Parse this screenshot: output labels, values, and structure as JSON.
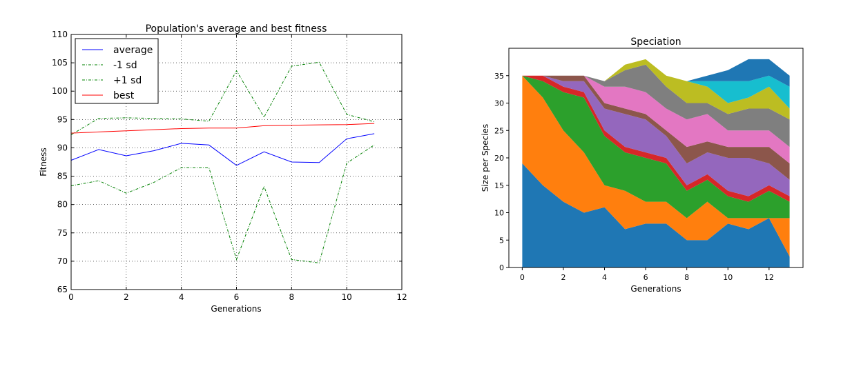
{
  "chart_data": [
    {
      "type": "line",
      "title": "Population's average and best fitness",
      "xlabel": "Generations",
      "ylabel": "Fitness",
      "xlim": [
        0,
        12
      ],
      "ylim": [
        65,
        110
      ],
      "xticks": [
        "0",
        "2",
        "4",
        "6",
        "8",
        "10",
        "12"
      ],
      "yticks": [
        "65",
        "70",
        "75",
        "80",
        "85",
        "90",
        "95",
        "100",
        "105",
        "110"
      ],
      "grid": true,
      "legend": "top-left",
      "x": [
        0,
        1,
        2,
        3,
        4,
        5,
        6,
        7,
        8,
        9,
        10,
        11
      ],
      "series": [
        {
          "name": "average",
          "color": "#0000ff",
          "style": "solid",
          "values": [
            87.8,
            89.7,
            88.6,
            89.5,
            90.8,
            90.5,
            86.9,
            89.3,
            87.5,
            87.4,
            91.6,
            92.5
          ]
        },
        {
          "name": "-1 sd",
          "color": "#008000",
          "style": "dashdot",
          "values": [
            83.3,
            84.2,
            82.0,
            83.9,
            86.5,
            86.5,
            70.3,
            83.2,
            70.3,
            69.7,
            87.3,
            90.5
          ]
        },
        {
          "name": "+1 sd",
          "color": "#008000",
          "style": "dashdot",
          "values": [
            92.3,
            95.2,
            95.3,
            95.2,
            95.1,
            94.7,
            103.6,
            95.4,
            104.4,
            105.1,
            95.9,
            94.6
          ]
        },
        {
          "name": "best",
          "color": "#ff0000",
          "style": "solid",
          "values": [
            92.6,
            92.8,
            93.0,
            93.2,
            93.4,
            93.5,
            93.5,
            93.9,
            94.0,
            94.05,
            94.1,
            94.3
          ]
        }
      ]
    },
    {
      "type": "area",
      "stacked": true,
      "title": "Speciation",
      "xlabel": "Generations",
      "ylabel": "Size per Species",
      "xlim": [
        -0.65,
        13.65
      ],
      "ylim": [
        0,
        40
      ],
      "xticks": [
        "0",
        "2",
        "4",
        "6",
        "8",
        "10",
        "12"
      ],
      "yticks": [
        "0",
        "5",
        "10",
        "15",
        "20",
        "25",
        "30",
        "35"
      ],
      "grid": false,
      "x": [
        0,
        1,
        2,
        3,
        4,
        5,
        6,
        7,
        8,
        9,
        10,
        11,
        12,
        13
      ],
      "series": [
        {
          "color": "#1f77b4",
          "values": [
            19,
            15,
            12,
            10,
            11,
            7,
            8,
            8,
            5,
            5,
            8,
            7,
            9,
            2
          ]
        },
        {
          "color": "#ff7f0e",
          "values": [
            16,
            16,
            13,
            11,
            4,
            7,
            4,
            4,
            4,
            7,
            1,
            2,
            0,
            7
          ]
        },
        {
          "color": "#2ca02c",
          "values": [
            0,
            3,
            7,
            10,
            9,
            7,
            8,
            7,
            5,
            4,
            4,
            3,
            5,
            3
          ]
        },
        {
          "color": "#d62728",
          "values": [
            0,
            1,
            1,
            1,
            1,
            1,
            1,
            1,
            1,
            1,
            1,
            1,
            1,
            1
          ]
        },
        {
          "color": "#9467bd",
          "values": [
            0,
            0,
            1,
            2,
            4,
            6,
            6,
            4,
            4,
            4,
            6,
            7,
            4,
            3
          ]
        },
        {
          "color": "#8c564b",
          "values": [
            0,
            0,
            1,
            1,
            1,
            1,
            1,
            1,
            3,
            2,
            2,
            2,
            3,
            3
          ]
        },
        {
          "color": "#e377c2",
          "values": [
            0,
            0,
            0,
            0,
            3,
            4,
            4,
            4,
            5,
            5,
            3,
            3,
            3,
            3
          ]
        },
        {
          "color": "#7f7f7f",
          "values": [
            0,
            0,
            0,
            0,
            1,
            3,
            5,
            4,
            3,
            2,
            3,
            4,
            4,
            5
          ]
        },
        {
          "color": "#bcbd22",
          "values": [
            0,
            0,
            0,
            0,
            0,
            1,
            1,
            2,
            4,
            3,
            2,
            2,
            4,
            2
          ]
        },
        {
          "color": "#17becf",
          "values": [
            0,
            0,
            0,
            0,
            0,
            0,
            0,
            0,
            0,
            1,
            4,
            3,
            2,
            4
          ]
        },
        {
          "color": "#1f77b4",
          "values": [
            0,
            0,
            0,
            0,
            0,
            0,
            0,
            0,
            0,
            1,
            2,
            4,
            3,
            2
          ]
        }
      ]
    }
  ]
}
